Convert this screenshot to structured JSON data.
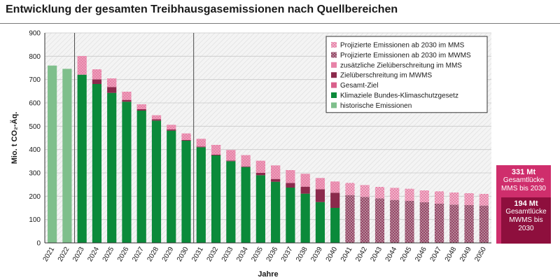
{
  "header": {
    "title": "Entwicklung der gesamten Treibhausgasemissionen nach Quellbereichen"
  },
  "callouts": {
    "mms": {
      "value": "331 Mt",
      "text": "Gesamtlücke MMS bis 2030"
    },
    "mwms": {
      "value": "194 Mt",
      "text": "Gesamtlücke MWMS bis 2030"
    }
  },
  "chart_data": {
    "type": "bar",
    "stacked": true,
    "xlabel": "Jahre",
    "ylabel": "Mio. t CO₂-Äq.",
    "ylim": [
      0,
      900
    ],
    "yticks": [
      0,
      100,
      200,
      300,
      400,
      500,
      600,
      700,
      800,
      900
    ],
    "grid": "hatched background",
    "legend_position": "top-right",
    "colors": {
      "historische Emissionen": "#7fbf8c",
      "Klimaziele Bundes-Klimaschutzgesetz": "#0b8a3a",
      "Gesamt-Ziel": "#d9608b",
      "Zielüberschreitung im MWMS": "#8b2a4c",
      "zusätzliche Zielüberschreitung im MMS": "#e883a8",
      "Projizierte Emissionen ab 2030 im MWMS": "#8b3a5a",
      "Projizierte Emissionen ab 2030 im MMS": "#e47aa2"
    },
    "legend": [
      "Projizierte Emissionen ab 2030 im MMS",
      "Projizierte Emissionen ab 2030 im MWMS",
      "zusätzliche Zielüberschreitung im MMS",
      "Zielüberschreitung im MWMS",
      "Gesamt-Ziel",
      "Klimaziele Bundes-Klimaschutzgesetz",
      "historische Emissionen"
    ],
    "categories": [
      "2021",
      "2022",
      "2023",
      "2024",
      "2025",
      "2026",
      "2027",
      "2028",
      "2029",
      "2030",
      "2031",
      "2032",
      "2033",
      "2034",
      "2035",
      "2036",
      "2037",
      "2038",
      "2039",
      "2040",
      "2041",
      "2042",
      "2043",
      "2044",
      "2045",
      "2046",
      "2047",
      "2048",
      "2049",
      "2050"
    ],
    "historical": [
      760,
      746,
      null,
      null,
      null,
      null,
      null,
      null,
      null,
      null,
      null,
      null,
      null,
      null,
      null,
      null,
      null,
      null,
      null,
      null,
      null,
      null,
      null,
      null,
      null,
      null,
      null,
      null,
      null,
      null
    ],
    "target": [
      null,
      null,
      721,
      681,
      643,
      605,
      567,
      524,
      481,
      438,
      410,
      375,
      350,
      325,
      290,
      262,
      237,
      211,
      175,
      150,
      null,
      null,
      null,
      null,
      null,
      null,
      null,
      null,
      null,
      null
    ],
    "overshoot_mwms": [
      null,
      null,
      0,
      20,
      25,
      8,
      6,
      6,
      5,
      3,
      3,
      3,
      3,
      3,
      10,
      12,
      20,
      30,
      55,
      65,
      205,
      197,
      191,
      184,
      180,
      174,
      168,
      164,
      162,
      160
    ],
    "additional_overshoot_mms": [
      null,
      null,
      80,
      43,
      37,
      35,
      21,
      17,
      20,
      28,
      33,
      42,
      45,
      48,
      52,
      58,
      55,
      55,
      48,
      48,
      52,
      51,
      49,
      52,
      52,
      51,
      53,
      52,
      51,
      50
    ]
  }
}
